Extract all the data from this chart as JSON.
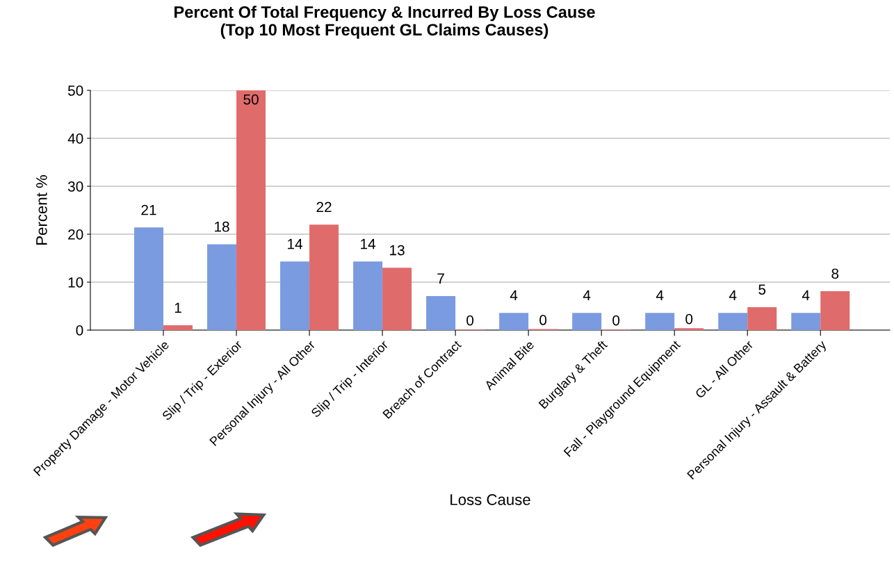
{
  "chart_data": {
    "type": "bar",
    "title": "Percent Of Total Frequency & Incurred By Loss Cause\n(Top 10 Most Frequent GL Claims Causes)",
    "xlabel": "Loss Cause",
    "ylabel": "Percent %",
    "categories": [
      "Property Damage - Motor Vehicle",
      "Slip / Trip - Exterior",
      "Personal Injury - All Other",
      "Slip / Trip - Interior",
      "Breach of Contract",
      "Animal Bite",
      "Burglary & Theft",
      "Fall - Playground Equipment",
      "GL - All Other",
      "Personal Injury - Assault & Battery"
    ],
    "series": [
      {
        "color": "#7b9be0",
        "values": [
          21.4,
          17.9,
          14.3,
          14.3,
          7.1,
          3.6,
          3.6,
          3.6,
          3.6,
          3.6
        ],
        "value_labels": [
          "21",
          "18",
          "14",
          "14",
          "7",
          "4",
          "4",
          "4",
          "4",
          "4"
        ]
      },
      {
        "color": "#e06b6b",
        "values": [
          1.0,
          50,
          22,
          13,
          0.1,
          0.2,
          0.1,
          0.4,
          4.8,
          8.1
        ],
        "value_labels": [
          "1",
          "50",
          "22",
          "13",
          "0",
          "0",
          "0",
          "0",
          "5",
          "8"
        ]
      }
    ],
    "ylim": [
      0,
      50
    ],
    "yticks": [
      0,
      10,
      20,
      30,
      40,
      50
    ],
    "grid": "y",
    "legend": false
  }
}
